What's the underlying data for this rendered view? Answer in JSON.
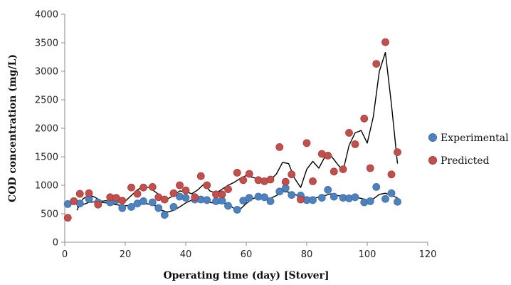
{
  "chart_data": {
    "type": "scatter",
    "xlabel": "Operating time (day) [Stover]",
    "ylabel": "COD concentration (mg/L)",
    "xlim": [
      0,
      120
    ],
    "ylim": [
      0,
      4000
    ],
    "xticks": [
      0,
      20,
      40,
      60,
      80,
      100,
      120
    ],
    "yticks": [
      0,
      500,
      1000,
      1500,
      2000,
      2500,
      3000,
      3500,
      4000
    ],
    "grid": false,
    "legend_position": "right",
    "colors": {
      "experimental": "#4f81bd",
      "predicted": "#c0504d",
      "line": "#000000"
    },
    "series": [
      {
        "name": "Experimental",
        "x": [
          1,
          3,
          5,
          8,
          11,
          15,
          17,
          19,
          22,
          24,
          26,
          29,
          31,
          33,
          36,
          38,
          40,
          43,
          45,
          47,
          50,
          52,
          54,
          57,
          59,
          61,
          64,
          66,
          68,
          71,
          73,
          75,
          78,
          80,
          82,
          85,
          87,
          89,
          92,
          94,
          96,
          99,
          101,
          103,
          106,
          108,
          110
        ],
        "y": [
          670,
          720,
          680,
          760,
          700,
          700,
          740,
          600,
          620,
          680,
          720,
          700,
          600,
          480,
          620,
          800,
          780,
          750,
          750,
          740,
          720,
          730,
          640,
          570,
          730,
          780,
          800,
          790,
          720,
          890,
          950,
          830,
          820,
          740,
          740,
          780,
          920,
          800,
          780,
          770,
          790,
          700,
          720,
          970,
          760,
          860,
          710
        ]
      },
      {
        "name": "Predicted",
        "x": [
          1,
          3,
          5,
          8,
          11,
          15,
          17,
          19,
          22,
          24,
          26,
          29,
          31,
          33,
          36,
          38,
          40,
          43,
          45,
          47,
          50,
          52,
          54,
          57,
          59,
          61,
          64,
          66,
          68,
          71,
          73,
          75,
          78,
          80,
          82,
          85,
          87,
          89,
          92,
          94,
          96,
          99,
          101,
          103,
          106,
          108,
          110
        ],
        "y": [
          430,
          720,
          850,
          860,
          660,
          790,
          780,
          730,
          960,
          850,
          960,
          970,
          790,
          750,
          860,
          1000,
          910,
          790,
          1160,
          1000,
          840,
          840,
          930,
          1220,
          1090,
          1200,
          1090,
          1070,
          1100,
          1670,
          1060,
          1190,
          750,
          1740,
          1070,
          1550,
          1520,
          1240,
          1280,
          1920,
          1720,
          2170,
          1300,
          3130,
          3510,
          1190,
          1580
        ]
      },
      {
        "name": "",
        "type": "line",
        "x": [
          4,
          6,
          8,
          10,
          12,
          14,
          16,
          18,
          20,
          22,
          24,
          26,
          28,
          30,
          32,
          34,
          36,
          38,
          40,
          42,
          44,
          46,
          48,
          50,
          52,
          54,
          56,
          58,
          60,
          62,
          64,
          66,
          68,
          70,
          72,
          74,
          76,
          78,
          80,
          82,
          84,
          86,
          88,
          90,
          92,
          94,
          96,
          98,
          100,
          102,
          104,
          106,
          108,
          110
        ],
        "y": [
          560,
          760,
          830,
          790,
          720,
          730,
          780,
          770,
          720,
          820,
          920,
          980,
          960,
          880,
          800,
          760,
          820,
          900,
          890,
          850,
          920,
          1020,
          900,
          860,
          930,
          1000,
          1050,
          1120,
          1170,
          1140,
          1110,
          1070,
          1090,
          1200,
          1400,
          1380,
          1120,
          960,
          1280,
          1420,
          1300,
          1500,
          1520,
          1380,
          1250,
          1700,
          1920,
          1960,
          1740,
          2200,
          3000,
          3330,
          2420,
          1380
        ]
      },
      {
        "name": "",
        "type": "line",
        "x": [
          4,
          6,
          8,
          10,
          12,
          14,
          16,
          18,
          20,
          22,
          24,
          26,
          28,
          30,
          32,
          34,
          36,
          38,
          40,
          42,
          44,
          46,
          48,
          50,
          52,
          54,
          56,
          58,
          60,
          62,
          64,
          66,
          68,
          70,
          72,
          74,
          76,
          78,
          80,
          82,
          84,
          86,
          88,
          90,
          92,
          94,
          96,
          98,
          100,
          102,
          104,
          106,
          108,
          110
        ],
        "y": [
          620,
          660,
          700,
          710,
          700,
          690,
          670,
          650,
          640,
          650,
          660,
          680,
          670,
          640,
          560,
          530,
          560,
          620,
          690,
          740,
          760,
          740,
          700,
          680,
          690,
          670,
          590,
          580,
          680,
          760,
          800,
          780,
          770,
          820,
          890,
          880,
          840,
          800,
          790,
          770,
          790,
          820,
          850,
          820,
          810,
          800,
          790,
          770,
          740,
          760,
          840,
          860,
          820,
          780
        ]
      }
    ]
  }
}
